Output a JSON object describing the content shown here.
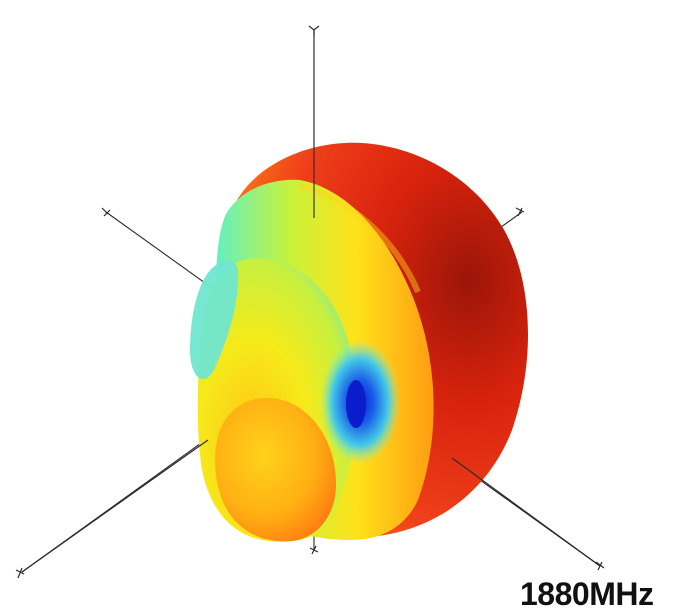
{
  "frequency_label": "1880MHz",
  "colors": {
    "peak": "#e81e0c",
    "high": "#ff9a12",
    "mid": "#f6f21a",
    "low": "#3fe6b6",
    "null": "#0a2bd8",
    "axis": "#2a2a2a"
  },
  "axes": [
    {
      "name": "axis-z"
    },
    {
      "name": "axis-x"
    },
    {
      "name": "axis-y"
    }
  ]
}
